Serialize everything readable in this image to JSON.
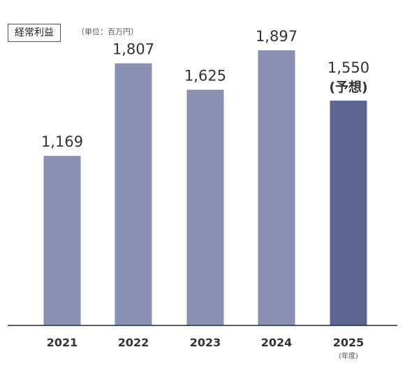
{
  "chart_data": {
    "type": "bar",
    "title": "経常利益",
    "unit": "（単位：百万円）",
    "categories": [
      "2021",
      "2022",
      "2023",
      "2024",
      "2025"
    ],
    "values": [
      1169,
      1807,
      1625,
      1897,
      1550
    ],
    "value_labels": [
      "1,169",
      "1,807",
      "1,625",
      "1,897",
      "1,550"
    ],
    "forecast_note": "(予想)",
    "forecast_index": 4,
    "xlabel_unit": "(年度)",
    "colors": {
      "bar": "#8990b1",
      "forecast_bar": "#5d6592",
      "axis": "#1d2b3a",
      "text": "#333333"
    },
    "grid": false
  }
}
